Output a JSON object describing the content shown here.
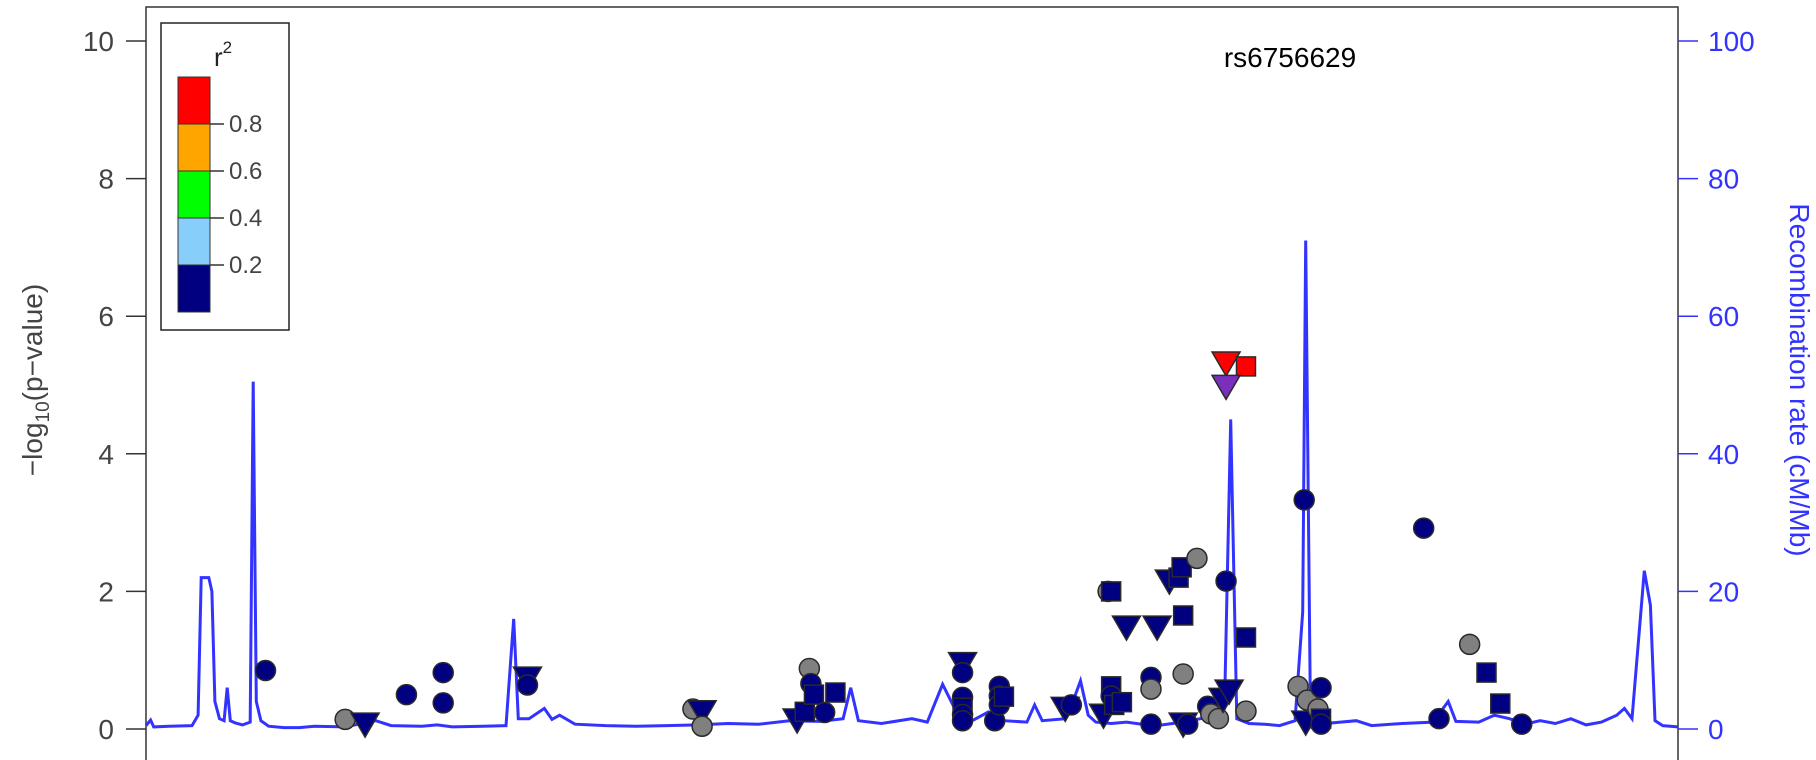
{
  "chart_data": {
    "type": "scatter",
    "annotation": "rs6756629",
    "ylabel_left_prefix": "−log",
    "ylabel_left_sub": "10",
    "ylabel_left_suffix": "(p−value)",
    "ylabel_right": "Recombination rate (cM/Mb)",
    "ylim_left": [
      0,
      10.4
    ],
    "ylim_right": [
      0,
      104
    ],
    "yticks_left": [
      0,
      2,
      4,
      6,
      8,
      10
    ],
    "yticks_right": [
      0,
      20,
      40,
      60,
      80,
      100
    ],
    "xlim": [
      0,
      1
    ],
    "grid": false,
    "legend": {
      "title": "r",
      "title_sup": "2",
      "position": "top-left",
      "bins": [
        {
          "color": "#FF0000"
        },
        {
          "color": "#FFA500"
        },
        {
          "color": "#00FF00"
        },
        {
          "color": "#87CEFA"
        },
        {
          "color": "#000080"
        }
      ],
      "ticks": [
        "0.8",
        "0.6",
        "0.4",
        "0.2"
      ]
    },
    "colors": {
      "recomb_line": "#3333FF",
      "low_ld": "#000080",
      "no_ld": "#808080",
      "high_ld": "#FF0000",
      "index": "#7B2FBE"
    },
    "recombination": [
      [
        0,
        0.5
      ],
      [
        0.003,
        1.3
      ],
      [
        0.005,
        0.3
      ],
      [
        0.015,
        0.4
      ],
      [
        0.03,
        0.5
      ],
      [
        0.034,
        2.0
      ],
      [
        0.036,
        22
      ],
      [
        0.041,
        22
      ],
      [
        0.043,
        20
      ],
      [
        0.045,
        4
      ],
      [
        0.048,
        1.5
      ],
      [
        0.051,
        1.2
      ],
      [
        0.053,
        6
      ],
      [
        0.055,
        1.2
      ],
      [
        0.058,
        0.9
      ],
      [
        0.063,
        0.6
      ],
      [
        0.068,
        1
      ],
      [
        0.07,
        50.5
      ],
      [
        0.072,
        4
      ],
      [
        0.075,
        1.2
      ],
      [
        0.08,
        0.4
      ],
      [
        0.09,
        0.2
      ],
      [
        0.1,
        0.2
      ],
      [
        0.11,
        0.4
      ],
      [
        0.13,
        0.3
      ],
      [
        0.15,
        1.2
      ],
      [
        0.16,
        0.5
      ],
      [
        0.18,
        0.4
      ],
      [
        0.19,
        0.6
      ],
      [
        0.2,
        0.3
      ],
      [
        0.22,
        0.4
      ],
      [
        0.235,
        0.5
      ],
      [
        0.24,
        16
      ],
      [
        0.243,
        1.5
      ],
      [
        0.25,
        1.5
      ],
      [
        0.26,
        3
      ],
      [
        0.265,
        1.4
      ],
      [
        0.27,
        2
      ],
      [
        0.28,
        0.7
      ],
      [
        0.3,
        0.5
      ],
      [
        0.32,
        0.4
      ],
      [
        0.34,
        0.5
      ],
      [
        0.36,
        0.6
      ],
      [
        0.38,
        0.8
      ],
      [
        0.4,
        0.7
      ],
      [
        0.42,
        1.2
      ],
      [
        0.44,
        1.1
      ],
      [
        0.455,
        1.5
      ],
      [
        0.46,
        6
      ],
      [
        0.465,
        1.2
      ],
      [
        0.48,
        0.8
      ],
      [
        0.5,
        1.5
      ],
      [
        0.51,
        1.0
      ],
      [
        0.52,
        6.5
      ],
      [
        0.53,
        2
      ],
      [
        0.54,
        1.3
      ],
      [
        0.55,
        2.5
      ],
      [
        0.56,
        1.2
      ],
      [
        0.575,
        1.0
      ],
      [
        0.58,
        3.5
      ],
      [
        0.585,
        1.2
      ],
      [
        0.6,
        1.5
      ],
      [
        0.605,
        4
      ],
      [
        0.61,
        7
      ],
      [
        0.615,
        2
      ],
      [
        0.62,
        1.0
      ],
      [
        0.63,
        0.8
      ],
      [
        0.64,
        1.0
      ],
      [
        0.65,
        0.7
      ],
      [
        0.66,
        0.5
      ],
      [
        0.67,
        0.8
      ],
      [
        0.68,
        1.1
      ],
      [
        0.69,
        1.6
      ],
      [
        0.7,
        0.8
      ],
      [
        0.704,
        3
      ],
      [
        0.708,
        45
      ],
      [
        0.712,
        1.5
      ],
      [
        0.72,
        0.8
      ],
      [
        0.73,
        0.7
      ],
      [
        0.74,
        0.5
      ],
      [
        0.75,
        1.2
      ],
      [
        0.755,
        17
      ],
      [
        0.757,
        71
      ],
      [
        0.76,
        4
      ],
      [
        0.765,
        1.2
      ],
      [
        0.77,
        0.8
      ],
      [
        0.79,
        1.2
      ],
      [
        0.8,
        0.5
      ],
      [
        0.82,
        0.8
      ],
      [
        0.84,
        1.0
      ],
      [
        0.85,
        4
      ],
      [
        0.855,
        1.1
      ],
      [
        0.87,
        1.0
      ],
      [
        0.88,
        2
      ],
      [
        0.89,
        1.5
      ],
      [
        0.9,
        0.7
      ],
      [
        0.91,
        1.2
      ],
      [
        0.92,
        0.8
      ],
      [
        0.93,
        1.5
      ],
      [
        0.94,
        0.6
      ],
      [
        0.95,
        1.0
      ],
      [
        0.96,
        2
      ],
      [
        0.965,
        3
      ],
      [
        0.97,
        1.5
      ],
      [
        0.978,
        23
      ],
      [
        0.982,
        18
      ],
      [
        0.985,
        1.2
      ],
      [
        0.99,
        0.5
      ],
      [
        1.0,
        0.3
      ]
    ],
    "points": [
      {
        "x": 0.078,
        "y": 0.85,
        "shape": "circle",
        "fill": "#000080"
      },
      {
        "x": 0.13,
        "y": 0.14,
        "shape": "circle",
        "fill": "#808080"
      },
      {
        "x": 0.143,
        "y": 0.07,
        "shape": "down",
        "fill": "#000080"
      },
      {
        "x": 0.17,
        "y": 0.5,
        "shape": "circle",
        "fill": "#000080"
      },
      {
        "x": 0.194,
        "y": 0.82,
        "shape": "circle",
        "fill": "#000080"
      },
      {
        "x": 0.194,
        "y": 0.38,
        "shape": "circle",
        "fill": "#000080"
      },
      {
        "x": 0.249,
        "y": 0.74,
        "shape": "down",
        "fill": "#000080"
      },
      {
        "x": 0.249,
        "y": 0.64,
        "shape": "circle",
        "fill": "#000080"
      },
      {
        "x": 0.357,
        "y": 0.29,
        "shape": "circle",
        "fill": "#808080"
      },
      {
        "x": 0.363,
        "y": 0.25,
        "shape": "down",
        "fill": "#000080"
      },
      {
        "x": 0.363,
        "y": 0.04,
        "shape": "circle",
        "fill": "#808080"
      },
      {
        "x": 0.425,
        "y": 0.13,
        "shape": "down",
        "fill": "#000080"
      },
      {
        "x": 0.43,
        "y": 0.25,
        "shape": "square",
        "fill": "#000080"
      },
      {
        "x": 0.433,
        "y": 0.88,
        "shape": "circle",
        "fill": "#808080"
      },
      {
        "x": 0.434,
        "y": 0.66,
        "shape": "circle",
        "fill": "#000080"
      },
      {
        "x": 0.436,
        "y": 0.5,
        "shape": "square",
        "fill": "#000080"
      },
      {
        "x": 0.443,
        "y": 0.24,
        "shape": "circle",
        "fill": "#000080"
      },
      {
        "x": 0.45,
        "y": 0.53,
        "shape": "square",
        "fill": "#000080"
      },
      {
        "x": 0.533,
        "y": 0.95,
        "shape": "down",
        "fill": "#000080"
      },
      {
        "x": 0.533,
        "y": 0.82,
        "shape": "circle",
        "fill": "#000080"
      },
      {
        "x": 0.533,
        "y": 0.46,
        "shape": "circle",
        "fill": "#000080"
      },
      {
        "x": 0.533,
        "y": 0.31,
        "shape": "square",
        "fill": "#000080"
      },
      {
        "x": 0.533,
        "y": 0.21,
        "shape": "circle",
        "fill": "#000080"
      },
      {
        "x": 0.533,
        "y": 0.12,
        "shape": "circle",
        "fill": "#000080"
      },
      {
        "x": 0.554,
        "y": 0.12,
        "shape": "circle",
        "fill": "#000080"
      },
      {
        "x": 0.557,
        "y": 0.62,
        "shape": "circle",
        "fill": "#000080"
      },
      {
        "x": 0.557,
        "y": 0.48,
        "shape": "circle",
        "fill": "#000080"
      },
      {
        "x": 0.557,
        "y": 0.35,
        "shape": "circle",
        "fill": "#000080"
      },
      {
        "x": 0.56,
        "y": 0.47,
        "shape": "square",
        "fill": "#000080"
      },
      {
        "x": 0.6,
        "y": 0.3,
        "shape": "down",
        "fill": "#000080"
      },
      {
        "x": 0.604,
        "y": 0.35,
        "shape": "circle",
        "fill": "#000080"
      },
      {
        "x": 0.625,
        "y": 0.2,
        "shape": "down",
        "fill": "#000080"
      },
      {
        "x": 0.628,
        "y": 2.0,
        "shape": "circle",
        "fill": "#808080"
      },
      {
        "x": 0.63,
        "y": 2.0,
        "shape": "square",
        "fill": "#000080"
      },
      {
        "x": 0.63,
        "y": 0.62,
        "shape": "square",
        "fill": "#000080"
      },
      {
        "x": 0.63,
        "y": 0.48,
        "shape": "circle",
        "fill": "#000080"
      },
      {
        "x": 0.632,
        "y": 0.35,
        "shape": "square",
        "fill": "#000080"
      },
      {
        "x": 0.637,
        "y": 0.39,
        "shape": "square",
        "fill": "#000080"
      },
      {
        "x": 0.64,
        "y": 1.48,
        "shape": "down",
        "fill": "#000080"
      },
      {
        "x": 0.656,
        "y": 0.75,
        "shape": "circle",
        "fill": "#000080"
      },
      {
        "x": 0.656,
        "y": 0.58,
        "shape": "circle",
        "fill": "#808080"
      },
      {
        "x": 0.656,
        "y": 0.07,
        "shape": "circle",
        "fill": "#000080"
      },
      {
        "x": 0.66,
        "y": 1.48,
        "shape": "down",
        "fill": "#000080"
      },
      {
        "x": 0.668,
        "y": 2.15,
        "shape": "down",
        "fill": "#000080"
      },
      {
        "x": 0.674,
        "y": 2.2,
        "shape": "square",
        "fill": "#000080"
      },
      {
        "x": 0.676,
        "y": 2.35,
        "shape": "square",
        "fill": "#000080"
      },
      {
        "x": 0.677,
        "y": 1.65,
        "shape": "square",
        "fill": "#000080"
      },
      {
        "x": 0.677,
        "y": 0.8,
        "shape": "circle",
        "fill": "#808080"
      },
      {
        "x": 0.677,
        "y": 0.07,
        "shape": "down",
        "fill": "#000080"
      },
      {
        "x": 0.68,
        "y": 0.07,
        "shape": "circle",
        "fill": "#000080"
      },
      {
        "x": 0.686,
        "y": 2.48,
        "shape": "circle",
        "fill": "#808080"
      },
      {
        "x": 0.693,
        "y": 0.33,
        "shape": "circle",
        "fill": "#000080"
      },
      {
        "x": 0.695,
        "y": 0.22,
        "shape": "circle",
        "fill": "#808080"
      },
      {
        "x": 0.7,
        "y": 0.15,
        "shape": "circle",
        "fill": "#808080"
      },
      {
        "x": 0.703,
        "y": 0.43,
        "shape": "down",
        "fill": "#000080"
      },
      {
        "x": 0.707,
        "y": 0.55,
        "shape": "down",
        "fill": "#000080"
      },
      {
        "x": 0.705,
        "y": 2.15,
        "shape": "circle",
        "fill": "#000080"
      },
      {
        "x": 0.718,
        "y": 1.33,
        "shape": "square",
        "fill": "#000080"
      },
      {
        "x": 0.718,
        "y": 0.26,
        "shape": "circle",
        "fill": "#808080"
      },
      {
        "x": 0.705,
        "y": 5.32,
        "shape": "down",
        "fill": "#FF0000"
      },
      {
        "x": 0.718,
        "y": 5.27,
        "shape": "square",
        "fill": "#FF0000"
      },
      {
        "x": 0.705,
        "y": 4.98,
        "shape": "down",
        "fill": "#7B2FBE"
      },
      {
        "x": 0.752,
        "y": 0.62,
        "shape": "circle",
        "fill": "#808080"
      },
      {
        "x": 0.756,
        "y": 3.33,
        "shape": "circle",
        "fill": "#000080"
      },
      {
        "x": 0.758,
        "y": 0.42,
        "shape": "circle",
        "fill": "#808080"
      },
      {
        "x": 0.757,
        "y": 0.1,
        "shape": "down",
        "fill": "#000080"
      },
      {
        "x": 0.765,
        "y": 0.29,
        "shape": "circle",
        "fill": "#808080"
      },
      {
        "x": 0.767,
        "y": 0.6,
        "shape": "circle",
        "fill": "#000080"
      },
      {
        "x": 0.767,
        "y": 0.15,
        "shape": "square",
        "fill": "#000080"
      },
      {
        "x": 0.767,
        "y": 0.07,
        "shape": "circle",
        "fill": "#000080"
      },
      {
        "x": 0.834,
        "y": 2.92,
        "shape": "circle",
        "fill": "#000080"
      },
      {
        "x": 0.844,
        "y": 0.15,
        "shape": "circle",
        "fill": "#000080"
      },
      {
        "x": 0.864,
        "y": 1.23,
        "shape": "circle",
        "fill": "#808080"
      },
      {
        "x": 0.875,
        "y": 0.82,
        "shape": "square",
        "fill": "#000080"
      },
      {
        "x": 0.884,
        "y": 0.37,
        "shape": "square",
        "fill": "#000080"
      },
      {
        "x": 0.898,
        "y": 0.07,
        "shape": "circle",
        "fill": "#000080"
      }
    ]
  }
}
